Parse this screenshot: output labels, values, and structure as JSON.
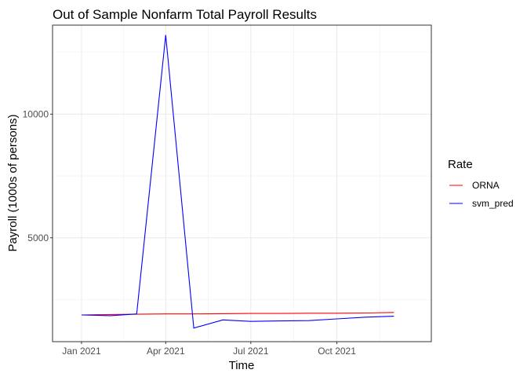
{
  "chart_data": {
    "type": "line",
    "title": "Out of Sample Nonfarm Total Payroll Results",
    "xlabel": "Time",
    "ylabel": "Payroll (1000s of persons)",
    "x_ticks": [
      "Jan 2021",
      "Apr 2021",
      "Jul 2021",
      "Oct 2021"
    ],
    "x_tick_dates": [
      "2021-01-01",
      "2021-04-01",
      "2021-07-01",
      "2021-10-01"
    ],
    "xlim": [
      "2020-12-01",
      "2022-01-10"
    ],
    "y_ticks": [
      5000,
      10000
    ],
    "y_tick_labels": [
      "5000",
      "10000"
    ],
    "ylim": [
      800,
      13600
    ],
    "grid": true,
    "legend": {
      "title": "Rate",
      "position": "right"
    },
    "series": [
      {
        "name": "ORNA",
        "color": "#ff0000",
        "x": [
          "2021-01-01",
          "2021-02-01",
          "2021-03-01",
          "2021-04-01",
          "2021-05-01",
          "2021-06-01",
          "2021-07-01",
          "2021-08-01",
          "2021-09-01",
          "2021-10-01",
          "2021-11-01",
          "2021-12-01"
        ],
        "y": [
          1880,
          1900,
          1910,
          1920,
          1920,
          1930,
          1940,
          1940,
          1950,
          1950,
          1960,
          1980
        ]
      },
      {
        "name": "svm_pred",
        "color": "#0000ff",
        "x": [
          "2021-01-01",
          "2021-02-01",
          "2021-03-01",
          "2021-04-01",
          "2021-05-01",
          "2021-06-01",
          "2021-07-01",
          "2021-08-01",
          "2021-09-01",
          "2021-10-01",
          "2021-11-01",
          "2021-12-01"
        ],
        "y": [
          1880,
          1850,
          1920,
          13200,
          1350,
          1680,
          1620,
          1640,
          1650,
          1720,
          1790,
          1830
        ]
      }
    ]
  }
}
